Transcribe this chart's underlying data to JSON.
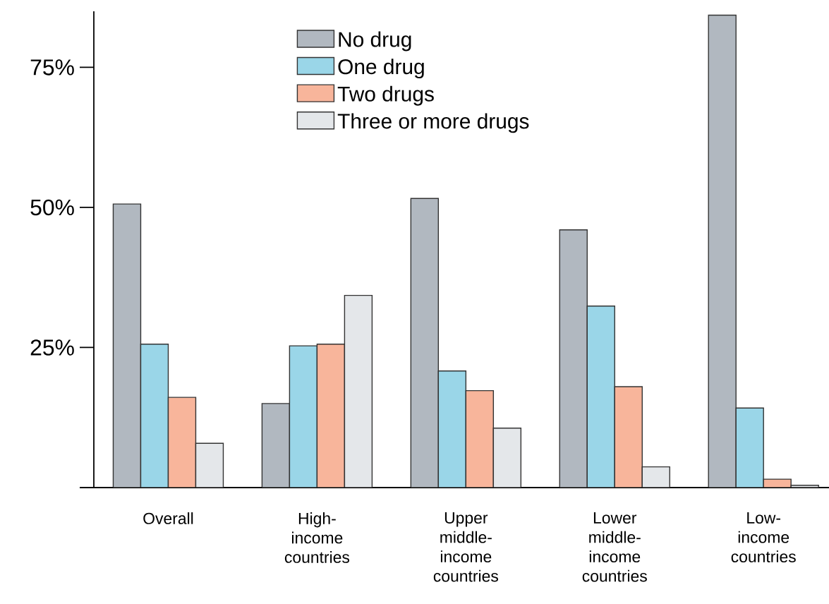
{
  "chart_data": {
    "type": "bar",
    "categories": [
      "Overall",
      "High-income countries",
      "Upper middle-income countries",
      "Lower middle-income countries",
      "Low-income countries"
    ],
    "series": [
      {
        "name": "No drug",
        "color": "#b1b8c0",
        "values": [
          50.6,
          15.0,
          51.6,
          46.0,
          84.3
        ]
      },
      {
        "name": "One drug",
        "color": "#9ad6e8",
        "values": [
          25.6,
          25.3,
          20.8,
          32.4,
          14.2
        ]
      },
      {
        "name": "Two drugs",
        "color": "#f8b59b",
        "values": [
          16.1,
          25.6,
          17.3,
          18.0,
          1.5
        ]
      },
      {
        "name": "Three or more drugs",
        "color": "#e4e7ea",
        "values": [
          7.9,
          34.3,
          10.6,
          3.7,
          0.4
        ]
      }
    ],
    "ylim": [
      0,
      85
    ],
    "yticks": [
      {
        "value": 0,
        "label": null
      },
      {
        "value": 25,
        "label": "25%"
      },
      {
        "value": 50,
        "label": "50%"
      },
      {
        "value": 75,
        "label": "75%"
      }
    ],
    "legend": "top"
  }
}
